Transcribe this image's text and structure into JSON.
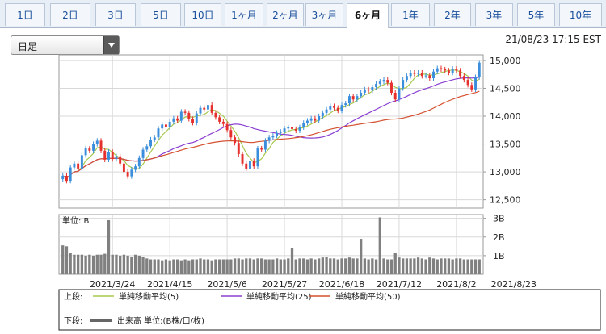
{
  "tabs": [
    {
      "label": "1日",
      "active": false
    },
    {
      "label": "2日",
      "active": false
    },
    {
      "label": "3日",
      "active": false
    },
    {
      "label": "5日",
      "active": false
    },
    {
      "label": "10日",
      "active": false
    },
    {
      "label": "1ヶ月",
      "active": false
    },
    {
      "label": "2ヶ月",
      "active": false
    },
    {
      "label": "3ヶ月",
      "active": false
    },
    {
      "label": "6ヶ月",
      "active": true
    },
    {
      "label": "1年",
      "active": false
    },
    {
      "label": "2年",
      "active": false
    },
    {
      "label": "3年",
      "active": false
    },
    {
      "label": "5年",
      "active": false
    },
    {
      "label": "10年",
      "active": false
    }
  ],
  "period_select": {
    "value": "日足"
  },
  "timestamp": "21/08/23 17:15 EST",
  "chart_data": [
    {
      "type": "candlestick",
      "panel": "price",
      "ylim": [
        12350,
        15100
      ],
      "yticks": [
        12500,
        13000,
        13500,
        14000,
        14500,
        15000
      ],
      "ytick_labels": [
        "12,500",
        "13,000",
        "13,500",
        "14,000",
        "14,500",
        "15,000"
      ],
      "grid": true,
      "up_color": "#3b8edb",
      "down_color": "#e5302d",
      "closes": [
        12930,
        12840,
        13080,
        13150,
        13060,
        13300,
        13420,
        13380,
        13500,
        13560,
        13380,
        13220,
        13360,
        13230,
        13280,
        13150,
        13000,
        12920,
        13040,
        13100,
        13250,
        13400,
        13460,
        13580,
        13620,
        13780,
        13850,
        13800,
        13900,
        13960,
        13920,
        14080,
        14060,
        13950,
        13880,
        14050,
        14150,
        14120,
        14200,
        14060,
        13980,
        13900,
        13860,
        13750,
        13620,
        13520,
        13320,
        13150,
        13060,
        13200,
        13100,
        13420,
        13400,
        13560,
        13620,
        13650,
        13700,
        13720,
        13780,
        13800,
        13770,
        13740,
        13800,
        13880,
        13920,
        13960,
        13920,
        14000,
        14060,
        14120,
        14180,
        14150,
        14100,
        14200,
        14230,
        14360,
        14300,
        14360,
        14420,
        14480,
        14460,
        14520,
        14580,
        14620,
        14650,
        14600,
        14420,
        14300,
        14500,
        14650,
        14720,
        14780,
        14760,
        14780,
        14720,
        14730,
        14680,
        14800,
        14860,
        14840,
        14820,
        14780,
        14850,
        14820,
        14720,
        14650,
        14560,
        14480,
        14700,
        14960
      ],
      "overlays": [
        {
          "name": "単純移動平均(5)",
          "period": 5,
          "color": "#a7c94f"
        },
        {
          "name": "単純移動平均(25)",
          "period": 25,
          "color": "#8a3fd1"
        },
        {
          "name": "単純移動平均(50)",
          "period": 50,
          "color": "#d4502f"
        }
      ]
    },
    {
      "type": "bar",
      "panel": "volume",
      "ylabel": "単位: B",
      "ylim": [
        0,
        3.2
      ],
      "yticks": [
        1,
        2,
        3
      ],
      "ytick_labels": [
        "1B",
        "2B",
        "3B"
      ],
      "color": "#808080",
      "values": [
        1.55,
        1.5,
        1.15,
        1.05,
        1.05,
        1.05,
        1.0,
        1.05,
        1.0,
        1.05,
        1.05,
        1.1,
        2.9,
        1.05,
        1.05,
        1.0,
        1.05,
        1.0,
        0.95,
        1.05,
        1.0,
        0.95,
        0.85,
        0.8,
        0.8,
        0.8,
        0.75,
        0.8,
        0.75,
        0.8,
        0.8,
        0.75,
        0.8,
        0.75,
        0.8,
        0.8,
        0.85,
        0.8,
        0.8,
        0.75,
        0.8,
        0.8,
        0.8,
        0.8,
        0.8,
        0.85,
        0.85,
        0.8,
        0.85,
        0.85,
        0.8,
        0.85,
        0.85,
        0.8,
        0.8,
        0.8,
        0.85,
        0.8,
        0.8,
        0.85,
        1.4,
        0.8,
        0.85,
        0.85,
        0.8,
        0.85,
        0.8,
        0.85,
        0.9,
        0.95,
        0.85,
        0.85,
        0.8,
        0.85,
        0.85,
        0.9,
        0.85,
        0.85,
        1.9,
        0.85,
        0.8,
        0.85,
        0.8,
        3.05,
        0.85,
        0.8,
        0.8,
        1.15,
        0.9,
        0.85,
        0.85,
        0.85,
        0.85,
        0.9,
        0.85,
        0.8,
        0.9,
        0.85,
        0.8,
        0.85,
        0.85,
        0.85,
        0.8,
        0.85,
        0.85,
        0.8,
        0.8,
        0.8,
        0.8,
        0.8
      ]
    }
  ],
  "x_axis": {
    "labels": [
      {
        "label": "2021/3/24",
        "index": 13
      },
      {
        "label": "2021/4/15",
        "index": 28
      },
      {
        "label": "2021/5/6",
        "index": 43
      },
      {
        "label": "2021/5/27",
        "index": 58
      },
      {
        "label": "2021/6/18",
        "index": 73
      },
      {
        "label": "2021/7/12",
        "index": 88
      },
      {
        "label": "2021/8/2",
        "index": 103
      },
      {
        "label": "2021/8/23",
        "index": 118
      }
    ]
  },
  "legend": {
    "upper_label": "上段:",
    "lower_label": "下段:",
    "upper_items": [
      {
        "name": "単純移動平均(5)",
        "color": "#a7c94f"
      },
      {
        "name": "単純移動平均(25)",
        "color": "#8a3fd1"
      },
      {
        "name": "単純移動平均(50)",
        "color": "#d4502f"
      }
    ],
    "lower_items": [
      {
        "name": "出来高 単位:(B株/口/枚)",
        "color": "#666666"
      }
    ]
  }
}
